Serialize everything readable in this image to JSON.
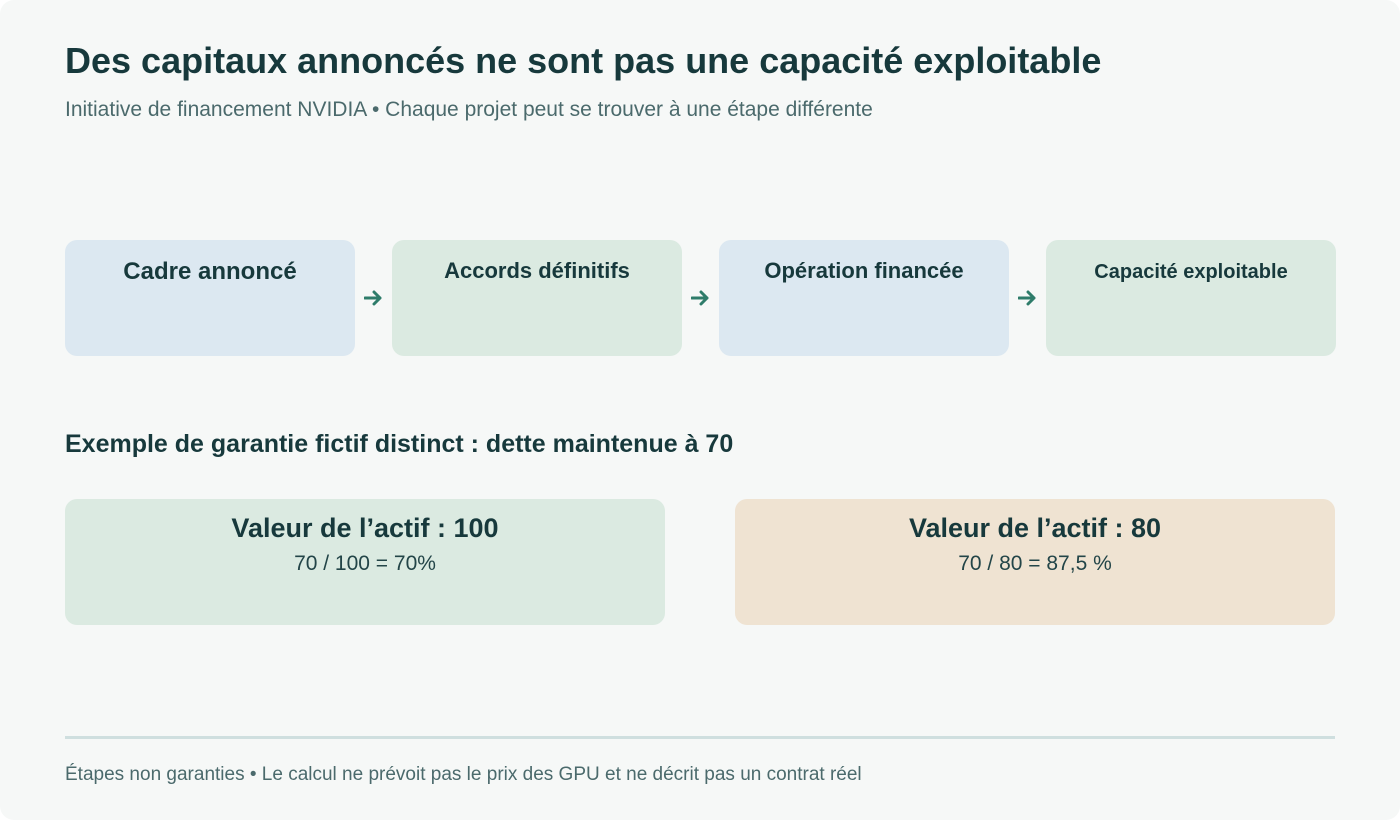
{
  "header": {
    "title": "Des capitaux annoncés ne sont pas une capacité exploitable",
    "subtitle": "Initiative de financement NVIDIA • Chaque projet peut se trouver à une étape différente"
  },
  "stages": [
    {
      "label": "Cadre annoncé",
      "color": "#dce8f1"
    },
    {
      "label": "Accords définitifs",
      "color": "#dbeae1"
    },
    {
      "label": "Opération financée",
      "color": "#dce8f1"
    },
    {
      "label": "Capacité exploitable",
      "color": "#dbeae1"
    }
  ],
  "arrow_color": "#2e7c6a",
  "example": {
    "heading": "Exemple de garantie fictif distinct : dette maintenue à 70",
    "cases": [
      {
        "title": "Valeur de l’actif : 100",
        "calc": "70 / 100 = 70%",
        "color": "#dbeae1"
      },
      {
        "title": "Valeur de l’actif : 80",
        "calc": "70 / 80 = 87,5 %",
        "color": "#efe3d2"
      }
    ]
  },
  "footnote": "Étapes non garanties • Le calcul ne prévoit pas le prix des GPU et ne décrit pas un contrat réel"
}
